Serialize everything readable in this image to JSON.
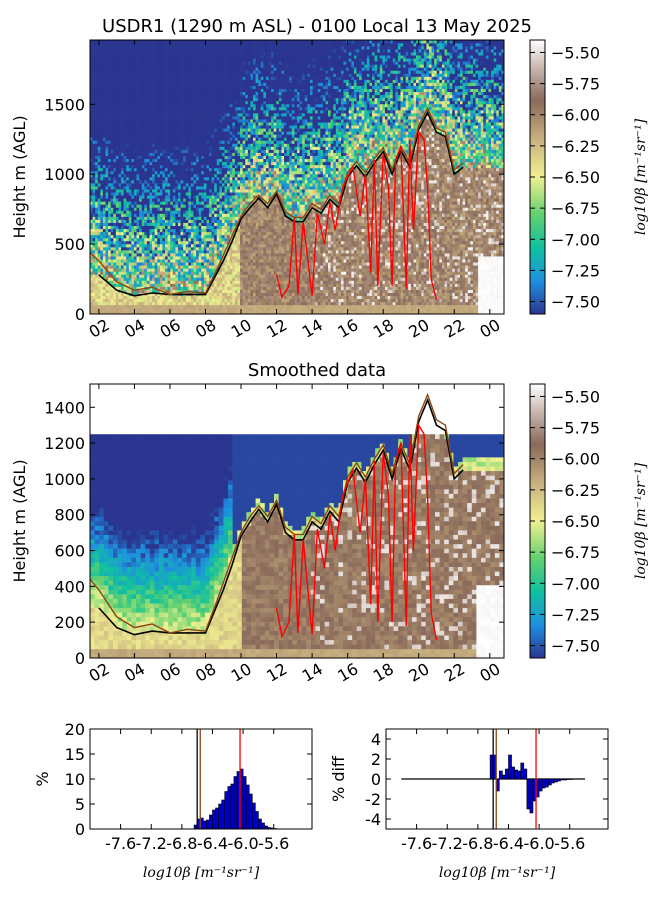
{
  "chart_data": [
    {
      "type": "heatmap",
      "title": "USDR1 (1290 m ASL) - 0100 Local 13 May 2025",
      "ylabel": "Height m (AGL)",
      "xlabel": "",
      "x_tick_labels": [
        "02",
        "04",
        "06",
        "08",
        "10",
        "12",
        "14",
        "16",
        "18",
        "20",
        "22",
        "00"
      ],
      "x_range_hours": [
        1.5,
        24.8
      ],
      "y_ticks": [
        0,
        500,
        1000,
        1500
      ],
      "ylim": [
        0,
        1960
      ],
      "colorbar": {
        "label": "log10β [m⁻¹sr⁻¹]",
        "ticks": [
          -5.5,
          -5.75,
          -6.0,
          -6.25,
          -6.5,
          -6.75,
          -7.0,
          -7.25,
          -7.5
        ],
        "tick_labels": [
          "−5.50",
          "−5.75",
          "−6.00",
          "−6.25",
          "−6.50",
          "−6.75",
          "−7.00",
          "−7.25",
          "−7.50"
        ],
        "range": [
          -7.6,
          -5.4
        ]
      },
      "series": [
        {
          "name": "",
          "color": "#000000",
          "x": [
            2,
            3,
            4,
            5,
            6,
            7,
            8,
            8.5,
            9,
            9.5,
            10,
            10.5,
            11,
            11.5,
            12,
            12.5,
            13,
            13.5,
            14,
            14.5,
            15,
            15.5,
            16,
            16.5,
            17,
            17.5,
            18,
            18.5,
            19,
            19.5,
            20,
            20.5,
            21,
            21.5,
            22,
            22.5
          ],
          "y": [
            280,
            170,
            130,
            150,
            140,
            140,
            140,
            260,
            380,
            520,
            680,
            760,
            830,
            760,
            860,
            700,
            660,
            660,
            760,
            720,
            820,
            760,
            980,
            1060,
            980,
            1080,
            1160,
            1000,
            1170,
            1050,
            1320,
            1440,
            1300,
            1270,
            1000,
            1050
          ]
        },
        {
          "name": "",
          "color": "#8b4513",
          "x": [
            1.5,
            2,
            3,
            4,
            5,
            6,
            7,
            8,
            8.5,
            9,
            9.5,
            10,
            10.5,
            11,
            11.5,
            12,
            12.5,
            13,
            13.5,
            14,
            14.5,
            15,
            15.5,
            16,
            16.5,
            17,
            17.5,
            18,
            18.5,
            19,
            19.5,
            20,
            20.5,
            21,
            21.5,
            22,
            22.5
          ],
          "y": [
            440,
            380,
            230,
            170,
            190,
            140,
            160,
            150,
            280,
            420,
            560,
            700,
            790,
            850,
            790,
            880,
            730,
            690,
            690,
            790,
            750,
            850,
            790,
            1010,
            1090,
            1010,
            1110,
            1190,
            1030,
            1200,
            1080,
            1350,
            1470,
            1330,
            1300,
            1030,
            1080
          ]
        },
        {
          "name": "",
          "color": "#ff0000",
          "x": [
            12,
            12.3,
            12.7,
            13,
            13.2,
            13.5,
            14,
            14.3,
            14.7,
            15,
            15.3,
            15.7,
            16,
            16.3,
            16.7,
            17,
            17.3,
            17.5,
            17.7,
            18,
            18.3,
            18.5,
            18.7,
            19,
            19.3,
            19.5,
            19.7,
            20,
            20.3,
            20.5,
            20.7,
            21
          ],
          "y": [
            280,
            120,
            200,
            690,
            140,
            660,
            130,
            720,
            500,
            800,
            600,
            900,
            980,
            1050,
            700,
            1000,
            300,
            1100,
            200,
            1150,
            900,
            200,
            1100,
            1200,
            180,
            1250,
            600,
            1300,
            1250,
            900,
            250,
            100
          ]
        }
      ]
    },
    {
      "type": "heatmap",
      "title": "Smoothed data",
      "ylabel": "Height m (AGL)",
      "xlabel": "",
      "x_tick_labels": [
        "02",
        "04",
        "06",
        "08",
        "10",
        "12",
        "14",
        "16",
        "18",
        "20",
        "22",
        "00"
      ],
      "x_range_hours": [
        1.5,
        24.8
      ],
      "y_ticks": [
        0,
        200,
        400,
        600,
        800,
        1000,
        1200,
        1400
      ],
      "ylim": [
        0,
        1530
      ],
      "colorbar": {
        "label": "log10β [m⁻¹sr⁻¹]",
        "ticks": [
          -5.5,
          -5.75,
          -6.0,
          -6.25,
          -6.5,
          -6.75,
          -7.0,
          -7.25,
          -7.5
        ],
        "tick_labels": [
          "−5.50",
          "−5.75",
          "−6.00",
          "−6.25",
          "−6.50",
          "−6.75",
          "−7.00",
          "−7.25",
          "−7.50"
        ],
        "range": [
          -7.6,
          -5.4
        ]
      }
    },
    {
      "type": "bar",
      "title": "",
      "ylabel": "%",
      "xlabel": "log10β [m⁻¹sr⁻¹]",
      "x_tick_labels": [
        "-7.6",
        "-7.2",
        "-6.8",
        "-6.4",
        "-6.0",
        "-5.6"
      ],
      "x_ticks": [
        -7.6,
        -7.2,
        -6.8,
        -6.4,
        -6.0,
        -5.6
      ],
      "xlim": [
        -8.0,
        -5.1
      ],
      "y_ticks": [
        0,
        5,
        10,
        15,
        20
      ],
      "ylim": [
        0,
        20
      ],
      "bin_centers": [
        -6.62,
        -6.58,
        -6.54,
        -6.5,
        -6.46,
        -6.42,
        -6.38,
        -6.34,
        -6.3,
        -6.26,
        -6.22,
        -6.18,
        -6.14,
        -6.1,
        -6.06,
        -6.02,
        -5.98,
        -5.94,
        -5.9,
        -5.86,
        -5.82,
        -5.78,
        -5.74,
        -5.7,
        -5.66,
        -5.62,
        -5.58
      ],
      "values": [
        0.8,
        2.0,
        2.2,
        1.6,
        1.8,
        2.8,
        3.8,
        4.2,
        5.0,
        5.8,
        7.5,
        8.5,
        9.0,
        10.5,
        11.5,
        12.0,
        10.5,
        8.8,
        7.0,
        5.2,
        3.5,
        2.0,
        1.2,
        0.6,
        0.3,
        0.2,
        0.1
      ],
      "vlines": [
        {
          "x": -6.6,
          "color": "#000000"
        },
        {
          "x": -6.56,
          "color": "#8b4513"
        },
        {
          "x": -6.04,
          "color": "#ff0000"
        }
      ]
    },
    {
      "type": "bar",
      "title": "",
      "ylabel": "% diff",
      "xlabel": "log10β [m⁻¹sr⁻¹]",
      "x_tick_labels": [
        "-7.6",
        "-7.2",
        "-6.8",
        "-6.4",
        "-6.0",
        "-5.6"
      ],
      "x_ticks": [
        -7.6,
        -7.2,
        -6.8,
        -6.4,
        -6.0,
        -5.6
      ],
      "xlim": [
        -8.0,
        -5.1
      ],
      "y_ticks": [
        -4,
        -2,
        0,
        2,
        4
      ],
      "ylim": [
        -5,
        5
      ],
      "bin_centers": [
        -6.62,
        -6.58,
        -6.54,
        -6.5,
        -6.46,
        -6.42,
        -6.38,
        -6.34,
        -6.3,
        -6.26,
        -6.22,
        -6.18,
        -6.14,
        -6.1,
        -6.06,
        -6.02,
        -5.98,
        -5.94,
        -5.9,
        -5.86,
        -5.82,
        -5.78,
        -5.74,
        -5.7,
        -5.66,
        -5.62,
        -5.58
      ],
      "values": [
        2.4,
        2.4,
        -1.2,
        0.8,
        0.4,
        1.0,
        2.4,
        1.2,
        0.9,
        0.8,
        1.6,
        1.0,
        -3.0,
        -3.4,
        -2.2,
        -1.8,
        -1.2,
        -0.9,
        -0.8,
        -0.6,
        -0.4,
        -0.3,
        -0.2,
        -0.1,
        -0.1,
        0,
        0
      ],
      "baseline": {
        "x_from": -7.8,
        "x_to": -5.4
      },
      "vlines": [
        {
          "x": -6.6,
          "color": "#000000"
        },
        {
          "x": -6.56,
          "color": "#8b4513"
        },
        {
          "x": -6.04,
          "color": "#ff0000"
        }
      ]
    }
  ]
}
